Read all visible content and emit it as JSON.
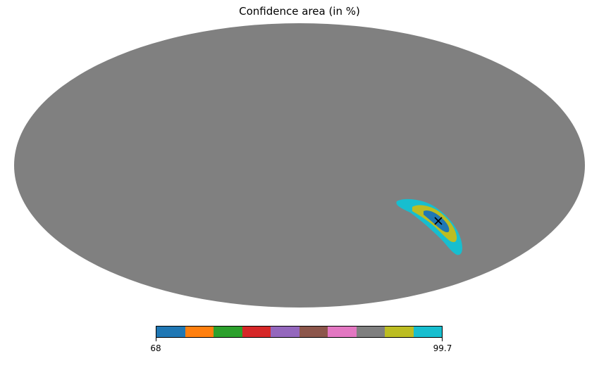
{
  "title": "Confidence area (in %)",
  "background_color": "#808080",
  "marker": {
    "symbol": "×",
    "longitude_deg": -108,
    "latitude_deg": -28
  },
  "colorbar": {
    "min_label": "68",
    "max_label": "99.7",
    "colors": [
      "#1f77b4",
      "#ff7f0e",
      "#2ca02c",
      "#d62728",
      "#9467bd",
      "#8c564b",
      "#e377c2",
      "#7f7f7f",
      "#bcbd22",
      "#17becf"
    ]
  },
  "confidence_regions": [
    {
      "level": 99.7,
      "color": "#17becf"
    },
    {
      "level": 95,
      "color": "#bcbd22"
    },
    {
      "level": 68,
      "color": "#1f77b4"
    }
  ]
}
